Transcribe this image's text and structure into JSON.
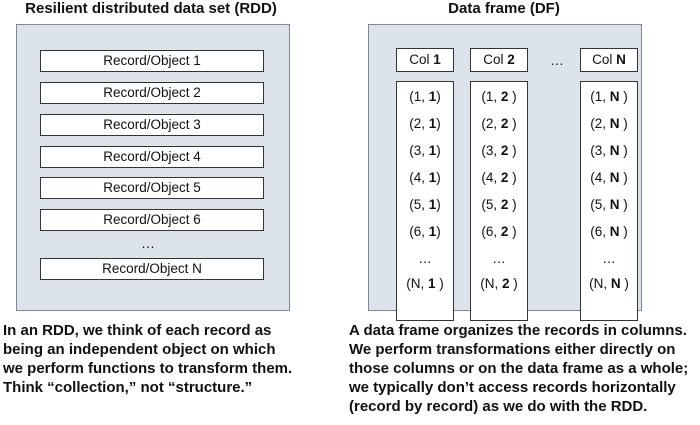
{
  "rdd": {
    "title": "Resilient distributed data set (RDD)",
    "records": [
      "Record/Object 1",
      "Record/Object 2",
      "Record/Object 3",
      "Record/Object 4",
      "Record/Object 5",
      "Record/Object 6"
    ],
    "ellipsis": "…",
    "last_record": "Record/Object N",
    "caption": [
      "In an RDD, we think of each record as",
      "being an independent object on which",
      "we perform functions to transform them.",
      "Think “collection,” not “structure.”"
    ]
  },
  "df": {
    "title": "Data frame (DF)",
    "header_ellipsis": "…",
    "columns": [
      {
        "head_prefix": "Col ",
        "head_bold": "1",
        "cells": [
          [
            "(1, ",
            "1",
            ")"
          ],
          [
            "(2, ",
            "1",
            ")"
          ],
          [
            "(3, ",
            "1",
            ")"
          ],
          [
            "(4, ",
            "1",
            ")"
          ],
          [
            "(5, ",
            "1",
            ")"
          ],
          [
            "(6, ",
            "1",
            ")"
          ],
          [
            "…",
            "",
            ""
          ],
          [
            "(N, ",
            "1",
            " )"
          ]
        ]
      },
      {
        "head_prefix": "Col ",
        "head_bold": "2",
        "cells": [
          [
            "(1, ",
            "2",
            "  )"
          ],
          [
            "(2, ",
            "2",
            "  )"
          ],
          [
            "(3, ",
            "2",
            "  )"
          ],
          [
            "(4, ",
            "2",
            "  )"
          ],
          [
            "(5, ",
            "2",
            "  )"
          ],
          [
            "(6, ",
            "2",
            "  )"
          ],
          [
            "…",
            "",
            ""
          ],
          [
            "(N, ",
            "2",
            " )"
          ]
        ]
      },
      {
        "head_prefix": "Col ",
        "head_bold": "N",
        "cells": [
          [
            "(1, ",
            "N",
            "  )"
          ],
          [
            "(2, ",
            "N",
            "  )"
          ],
          [
            "(3, ",
            "N",
            "  )"
          ],
          [
            "(4, ",
            "N",
            "  )"
          ],
          [
            "(5, ",
            "N",
            "  )"
          ],
          [
            "(6, ",
            "N",
            "  )"
          ],
          [
            "…",
            "",
            ""
          ],
          [
            "(N, ",
            "N",
            "  )"
          ]
        ]
      }
    ],
    "caption": [
      "A data frame organizes the records in columns.",
      "We perform transformations either directly on",
      "those columns or on the data frame as a whole;",
      "we typically don’t access records horizontally",
      "(record by record) as we do with the RDD."
    ]
  }
}
